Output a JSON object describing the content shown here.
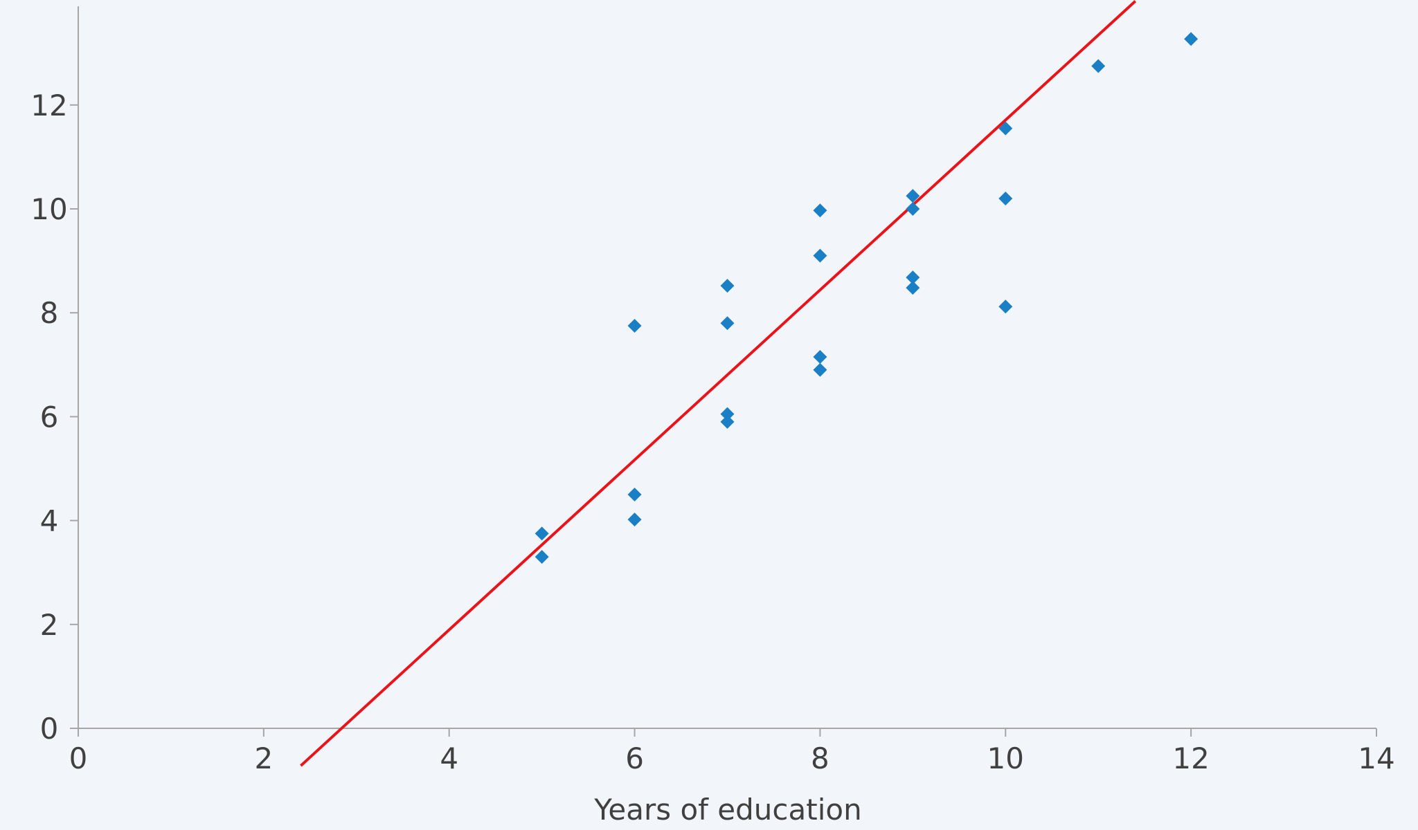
{
  "chart_data": {
    "type": "scatter",
    "title": "",
    "xlabel": "Years of education",
    "ylabel": "",
    "xlim": [
      0,
      14
    ],
    "ylim": [
      0,
      14
    ],
    "xticks": [
      0,
      2,
      4,
      6,
      8,
      10,
      12,
      14
    ],
    "yticks": [
      0,
      2,
      4,
      6,
      8,
      10,
      12
    ],
    "xtick_labels": [
      "0",
      "2",
      "4",
      "6",
      "8",
      "10",
      "12",
      "14"
    ],
    "ytick_labels": [
      "0",
      "2",
      "4",
      "6",
      "8",
      "10",
      "12"
    ],
    "grid": false,
    "legend": "none",
    "series": [
      {
        "marker": "diamond",
        "color": "#1a7fc4",
        "points": [
          {
            "x": 5,
            "y": 3.75
          },
          {
            "x": 5,
            "y": 3.3
          },
          {
            "x": 6,
            "y": 7.75
          },
          {
            "x": 6,
            "y": 4.5
          },
          {
            "x": 6,
            "y": 4.02
          },
          {
            "x": 7,
            "y": 8.52
          },
          {
            "x": 7,
            "y": 7.8
          },
          {
            "x": 7,
            "y": 6.05
          },
          {
            "x": 7,
            "y": 5.9
          },
          {
            "x": 8,
            "y": 9.97
          },
          {
            "x": 8,
            "y": 9.1
          },
          {
            "x": 8,
            "y": 7.15
          },
          {
            "x": 8,
            "y": 6.9
          },
          {
            "x": 9,
            "y": 10.25
          },
          {
            "x": 9,
            "y": 10.0
          },
          {
            "x": 9,
            "y": 8.68
          },
          {
            "x": 9,
            "y": 8.48
          },
          {
            "x": 10,
            "y": 11.55
          },
          {
            "x": 10,
            "y": 10.2
          },
          {
            "x": 10,
            "y": 8.12
          },
          {
            "x": 11,
            "y": 12.75
          },
          {
            "x": 12,
            "y": 13.27
          }
        ]
      }
    ],
    "trendline": {
      "type": "linear",
      "color": "#e8141a",
      "from": {
        "x": 2.4,
        "y": -0.72
      },
      "to": {
        "x": 11.4,
        "y": 14.0
      }
    }
  }
}
